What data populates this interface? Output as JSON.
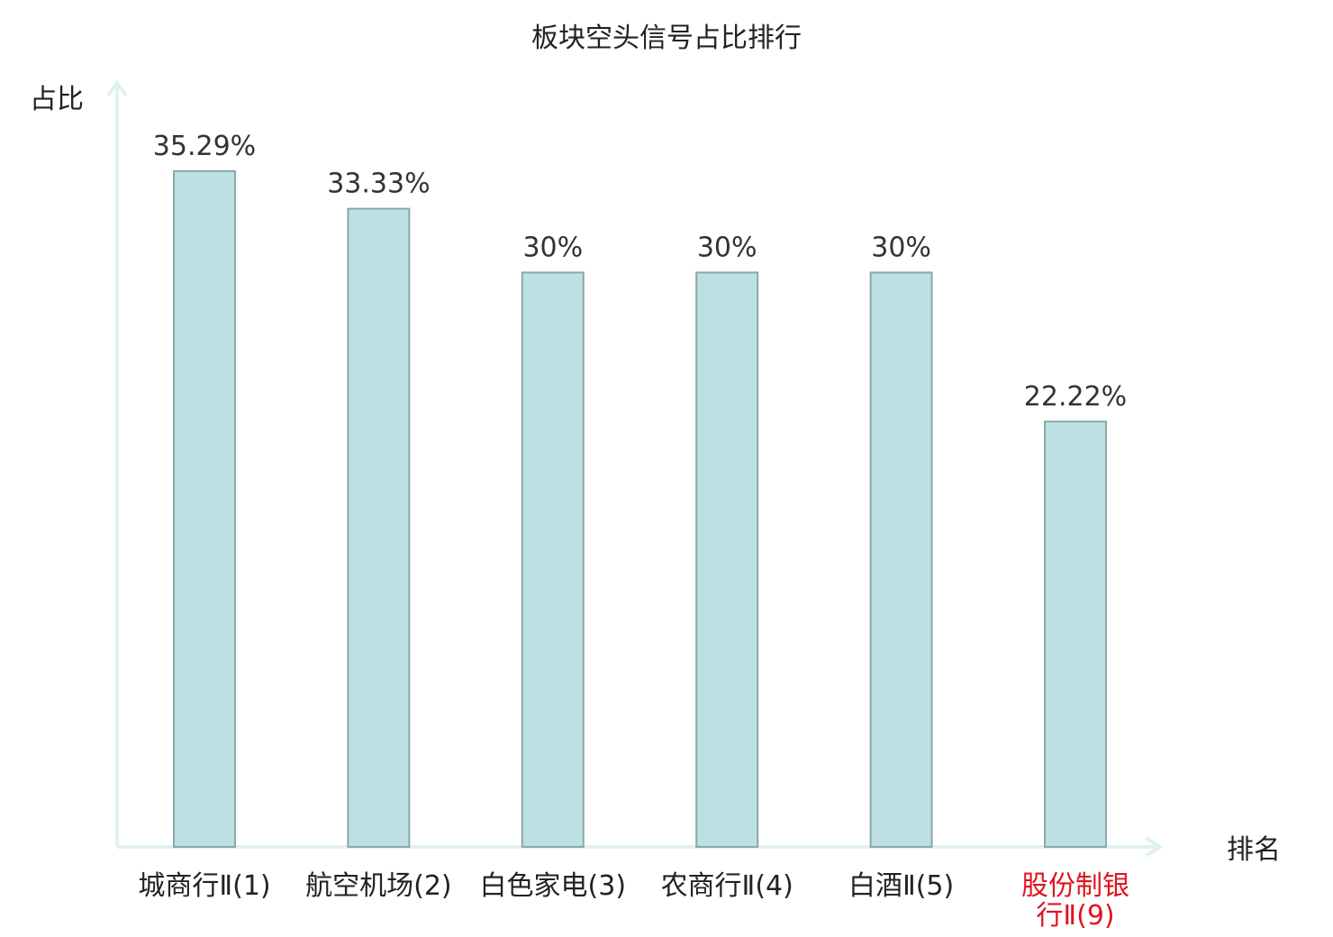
{
  "chart_data": {
    "type": "bar",
    "title": "板块空头信号占比排行",
    "ylabel": "占比",
    "xlabel": "排名",
    "categories": [
      [
        "城商行Ⅱ(1)"
      ],
      [
        "航空机场(2)"
      ],
      [
        "白色家电(3)"
      ],
      [
        "农商行Ⅱ(4)"
      ],
      [
        "白酒Ⅱ(5)"
      ],
      [
        "股份制银",
        "行Ⅱ(9)"
      ]
    ],
    "values": [
      35.29,
      33.33,
      30,
      30,
      30,
      22.22
    ],
    "value_labels": [
      "35.29%",
      "33.33%",
      "30%",
      "30%",
      "30%",
      "22.22%"
    ],
    "highlight_index": 5,
    "ylim": [
      0,
      40
    ],
    "grid": false,
    "colors": {
      "bar_fill": "#bde0e2",
      "bar_stroke": "#8aa9ab",
      "axis": "#e0f2f0",
      "label": "#222222",
      "highlight": "#e0141e"
    }
  }
}
